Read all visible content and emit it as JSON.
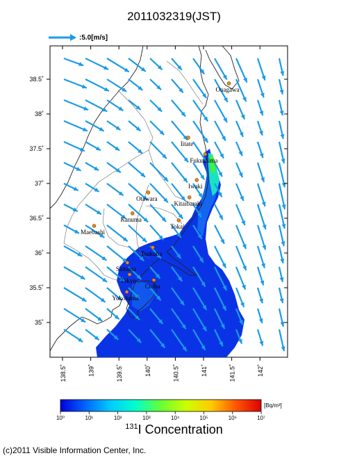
{
  "title": "2011032319(JST)",
  "wind_legend": {
    "label": ":5.0[m/s]",
    "arrow_color": "#1a9be6"
  },
  "lon_ticks": [
    "138.5˚",
    "139˚",
    "139.5˚",
    "140˚",
    "140.5˚",
    "141˚",
    "141.5˚",
    "142˚"
  ],
  "lat_ticks": [
    "38.5˚",
    "38˚",
    "37.5˚",
    "37˚",
    "36.5˚",
    "36˚",
    "35.5˚",
    "35˚"
  ],
  "cities": [
    {
      "name": "Onagawa",
      "lon": 141.45,
      "lat": 38.44
    },
    {
      "name": "Iitate",
      "lon": 140.73,
      "lat": 37.66
    },
    {
      "name": "Fukushima",
      "lon": 141.03,
      "lat": 37.42
    },
    {
      "name": "Iwaki",
      "lon": 140.88,
      "lat": 37.05
    },
    {
      "name": "Otawara",
      "lon": 140.02,
      "lat": 36.87
    },
    {
      "name": "Kitaibaraki",
      "lon": 140.75,
      "lat": 36.8
    },
    {
      "name": "Kanuma",
      "lon": 139.74,
      "lat": 36.57
    },
    {
      "name": "Maebashi",
      "lon": 139.06,
      "lat": 36.39
    },
    {
      "name": "Tokai",
      "lon": 140.56,
      "lat": 36.47
    },
    {
      "name": "Tsukuba",
      "lon": 140.1,
      "lat": 36.08
    },
    {
      "name": "Saitama",
      "lon": 139.65,
      "lat": 35.86
    },
    {
      "name": "Tokyo",
      "lon": 139.69,
      "lat": 35.69
    },
    {
      "name": "Chiba",
      "lon": 140.12,
      "lat": 35.61
    },
    {
      "name": "Yokohama",
      "lon": 139.64,
      "lat": 35.44
    }
  ],
  "colorbar": {
    "unit": "[Bq/m³]",
    "tick_labels": [
      "10⁰",
      "10¹",
      "10²",
      "10³",
      "10⁴",
      "10⁵",
      "10⁶",
      "10⁷"
    ],
    "colors": [
      "#0000dd",
      "#0066ff",
      "#00ccff",
      "#00ffcc",
      "#66ff33",
      "#ccff00",
      "#ffcc00",
      "#ff5500",
      "#dd0000"
    ]
  },
  "colorbar_title": {
    "superscript": "131",
    "text": "I Concentration"
  },
  "credit": "(c)2011 Visible Information Center, Inc.",
  "plume_colors": {
    "low": "#0b33e6",
    "mid": "#1466f0",
    "high": "#17e3c4",
    "peak": "#44f040"
  }
}
